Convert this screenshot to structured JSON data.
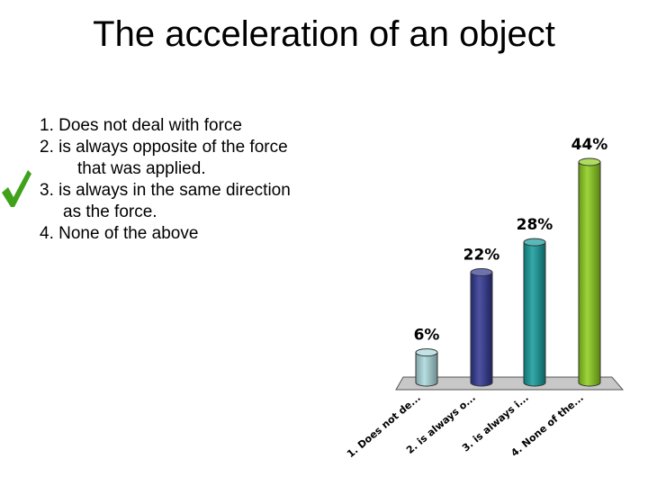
{
  "slide": {
    "title": "The acceleration of an object",
    "answers": [
      "1. Does not deal with force",
      "2. is always opposite of the force",
      "that was applied.",
      "3. is always in the same direction",
      "as the force.",
      "4. None of the above"
    ],
    "correct_icon": "checkmark-icon",
    "correct_color": "#3fa21a"
  },
  "chart_data": {
    "type": "bar",
    "style": "3d-cylinder",
    "categories": [
      "1. Does not de...",
      "2. is always o...",
      "3. is always i...",
      "4. None of the..."
    ],
    "values": [
      6,
      22,
      28,
      44
    ],
    "value_labels": [
      "6%",
      "22%",
      "28%",
      "44%"
    ],
    "colors": [
      "#a9d8dc",
      "#2e3590",
      "#129a9a",
      "#8ccc1a"
    ],
    "title": "",
    "xlabel": "",
    "ylabel": "",
    "ylim": [
      0,
      44
    ],
    "grid": false,
    "legend": "none"
  }
}
